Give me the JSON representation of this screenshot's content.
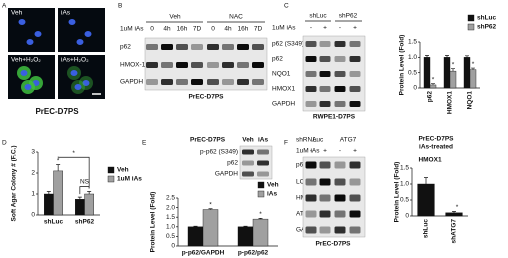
{
  "figure": {
    "a": {
      "letter": "A",
      "images": [
        "Veh",
        "iAs",
        "Veh+H₂O₂",
        "iAs+H₂O₂"
      ],
      "caption": "PrEC-D7PS"
    },
    "b": {
      "letter": "B",
      "groups": [
        "Veh",
        "NAC"
      ],
      "treatment": "1uM iAs",
      "lanes": [
        "0",
        "4h",
        "16h",
        "7D",
        "0",
        "4h",
        "16h",
        "7D"
      ],
      "rows": [
        "p62",
        "HMOX-1",
        "GAPDH"
      ],
      "caption": "PrEC-D7PS"
    },
    "c": {
      "letter": "C",
      "groups": [
        "shLuc",
        "shP62"
      ],
      "treatment": "1uM iAs",
      "lanes": [
        "-",
        "+",
        "-",
        "+"
      ],
      "rows": [
        "p62 (S349)",
        "p62",
        "NQO1",
        "HMOX1",
        "GAPDH"
      ],
      "caption": "RWPE1-D7PS"
    },
    "d": {
      "letter": "D"
    },
    "e": {
      "letter": "E",
      "title": "PrEC-D7PS",
      "lanes": [
        "Veh",
        "iAs"
      ],
      "rows": [
        "p-p62 (S349)",
        "p62",
        "GAPDH"
      ]
    },
    "f": {
      "letter": "F",
      "shrna": "shRNA",
      "groups": [
        "Luc",
        "ATG7"
      ],
      "treatment": "1uM iAs",
      "lanes": [
        "-",
        "+",
        "-",
        "+"
      ],
      "rows": [
        "p62",
        "LC3B",
        "HMOX1",
        "ATG7",
        "GAPDH"
      ],
      "caption": "PrEC-D7PS"
    }
  },
  "chart_data": [
    {
      "type": "bar",
      "y_label": "Protein Level (Fold)",
      "categories": [
        "p62",
        "HMOX1",
        "NQO1"
      ],
      "series": [
        {
          "name": "shLuc",
          "color": "#111111",
          "values": [
            1.0,
            1.0,
            1.0
          ],
          "errors": [
            0.06,
            0.06,
            0.05
          ]
        },
        {
          "name": "shP62",
          "color": "#a0a0a0",
          "values": [
            0.1,
            0.55,
            0.6
          ],
          "errors": [
            0.04,
            0.08,
            0.05
          ]
        }
      ],
      "ylim": [
        0,
        1.5
      ],
      "yticks": [
        0,
        0.5,
        {
          "value": 1,
          "label": "1.0"
        },
        1.5
      ],
      "annotations": [
        "*",
        "*",
        "*"
      ]
    },
    {
      "type": "bar",
      "y_label": "Soft Agar Colony # (F.C.)",
      "categories": [
        "shLuc",
        "shP62"
      ],
      "series": [
        {
          "name": "Veh",
          "color": "#111111",
          "values": [
            1.0,
            0.75
          ],
          "errors": [
            0.12,
            0.1
          ]
        },
        {
          "name": "1uM iAs",
          "color": "#a0a0a0",
          "values": [
            2.1,
            1.0
          ],
          "errors": [
            0.3,
            0.12
          ]
        }
      ],
      "ylim": [
        0,
        3
      ],
      "yticks": [
        0,
        1,
        2,
        3
      ],
      "annotations": [
        "*",
        "*",
        "NS"
      ]
    },
    {
      "type": "bar",
      "y_label": "Protein Level (Fold)",
      "categories": [
        "p-p62/GAPDH",
        "p-p62/p62"
      ],
      "series": [
        {
          "name": "Veh",
          "color": "#111111",
          "values": [
            1.0,
            1.0
          ],
          "errors": [
            0.03,
            0.03
          ]
        },
        {
          "name": "iAs",
          "color": "#a0a0a0",
          "values": [
            1.9,
            1.4
          ],
          "errors": [
            0.04,
            0.04
          ]
        }
      ],
      "ylim": [
        0,
        2.5
      ],
      "yticks": [
        0,
        0.5,
        {
          "value": 1,
          "label": "1.0"
        },
        1.5,
        {
          "value": 2,
          "label": "2.0"
        },
        2.5
      ],
      "annotations": [
        "*",
        "*"
      ]
    },
    {
      "type": "bar",
      "title": "PrEC-D7PS",
      "subtitle": "iAs-treated",
      "panel_title": "HMOX1",
      "y_label": "Protein Level (Fold)",
      "categories": [
        "shLuc",
        "shATG7"
      ],
      "values": [
        1.0,
        0.1
      ],
      "errors": [
        0.2,
        0.04
      ],
      "color": "#111111",
      "ylim": [
        0,
        1.5
      ],
      "yticks": [
        0,
        0.5,
        {
          "value": 1,
          "label": "1.0"
        },
        1.5
      ],
      "annotations": [
        "*"
      ]
    }
  ]
}
